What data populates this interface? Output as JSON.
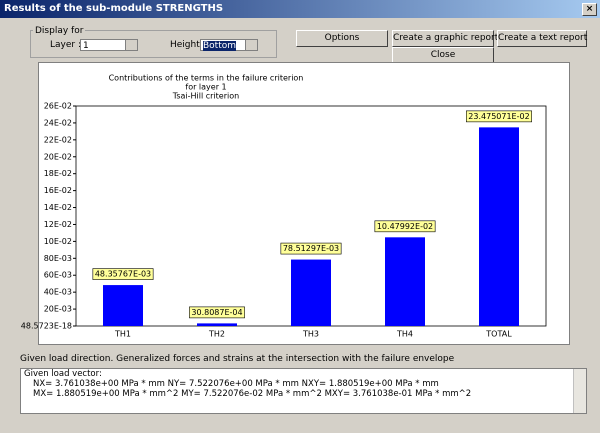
{
  "window": {
    "title": "Results of the sub-module STRENGTHS"
  },
  "display_group": {
    "label": "Display for",
    "layer_label": "Layer :",
    "layer_value": "1",
    "height_label": "Height",
    "height_value": "Bottom"
  },
  "buttons": {
    "options": "Options",
    "graphic_report": "Create a graphic report",
    "text_report": "Create a text report",
    "close": "Close"
  },
  "chart_data": {
    "type": "bar",
    "title": [
      "Contributions of the terms in the failure criterion",
      "for layer 1",
      "Tsai-Hill criterion"
    ],
    "categories": [
      "TH1",
      "TH2",
      "TH3",
      "TH4",
      "TOTAL"
    ],
    "values": [
      0.04835767,
      0.00308087,
      0.07851297,
      0.1047992,
      0.23475071
    ],
    "value_labels": [
      "48.35767E-03",
      "30.8087E-04",
      "78.51297E-03",
      "10.47992E-02",
      "23.475071E-02"
    ],
    "color": "#0000ff",
    "ylim": [
      0,
      0.26
    ],
    "yticks": [
      {
        "value": 4.85723e-17,
        "label": "48.5723E-18"
      },
      {
        "value": 0.02,
        "label": "20E-03"
      },
      {
        "value": 0.04,
        "label": "40E-03"
      },
      {
        "value": 0.06,
        "label": "60E-03"
      },
      {
        "value": 0.08,
        "label": "80E-03"
      },
      {
        "value": 0.1,
        "label": "10E-02"
      },
      {
        "value": 0.12,
        "label": "12E-02"
      },
      {
        "value": 0.14,
        "label": "14E-02"
      },
      {
        "value": 0.16,
        "label": "16E-02"
      },
      {
        "value": 0.18,
        "label": "18E-02"
      },
      {
        "value": 0.2,
        "label": "20E-02"
      },
      {
        "value": 0.22,
        "label": "22E-02"
      },
      {
        "value": 0.24,
        "label": "24E-02"
      },
      {
        "value": 0.26,
        "label": "26E-02"
      }
    ]
  },
  "load": {
    "label": "Given load direction. Generalized forces and strains at the intersection with the failure envelope",
    "lines": [
      "Given load vector:",
      "NX= 3.761038e+00 MPa * mm  NY= 7.522076e+00 MPa * mm  NXY= 1.880519e+00 MPa * mm",
      "MX= 1.880519e+00 MPa * mm^2  MY= 7.522076e-02 MPa * mm^2  MXY= 3.761038e-01 MPa * mm^2"
    ]
  }
}
